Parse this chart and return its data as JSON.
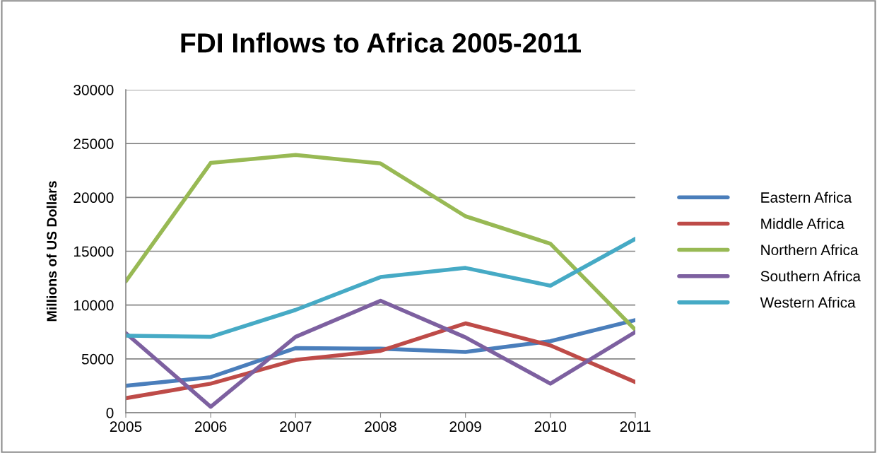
{
  "chart_data": {
    "type": "line",
    "title": "FDI Inflows to Africa 2005-2011",
    "ylabel": "Millions of US Dollars",
    "categories": [
      "2005",
      "2006",
      "2007",
      "2008",
      "2009",
      "2010",
      "2011"
    ],
    "series": [
      {
        "name": "Eastern Africa",
        "color": "#4a7ebb",
        "values": [
          2500,
          3300,
          6000,
          5950,
          5650,
          6650,
          8600
        ]
      },
      {
        "name": "Middle Africa",
        "color": "#be4b48",
        "values": [
          1350,
          2700,
          4900,
          5750,
          8300,
          6250,
          2850
        ]
      },
      {
        "name": "Northern Africa",
        "color": "#98b954",
        "values": [
          12200,
          23200,
          23950,
          23150,
          18250,
          15700,
          7700
        ]
      },
      {
        "name": "Southern Africa",
        "color": "#7d60a0",
        "values": [
          7400,
          550,
          7050,
          10400,
          7000,
          2700,
          7500
        ]
      },
      {
        "name": "Western Africa",
        "color": "#46aac5",
        "values": [
          7150,
          7050,
          9550,
          12600,
          13450,
          11800,
          16150
        ]
      }
    ],
    "ylim": [
      0,
      30000
    ],
    "yticks": [
      0,
      5000,
      10000,
      15000,
      20000,
      25000,
      30000
    ],
    "grid": "y",
    "legend": "right",
    "marker": "none",
    "line_style": "solid"
  }
}
